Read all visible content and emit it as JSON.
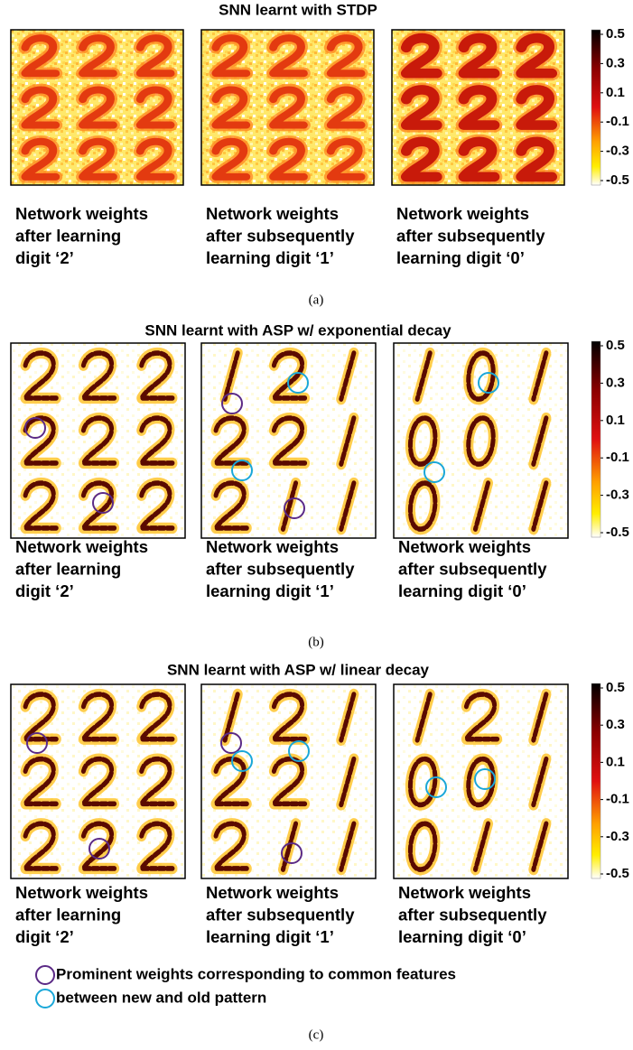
{
  "figures": [
    {
      "title": "SNN learnt with STDP",
      "captions": [
        [
          "Network weights",
          "after learning",
          "digit ‘2’"
        ],
        [
          "Network weights",
          "after subsequently",
          "learning digit ‘1’"
        ],
        [
          "Network weights",
          "after subsequently",
          "learning digit ‘0’"
        ]
      ],
      "colorbar": {
        "lim": [
          -0.5,
          0.5
        ],
        "ticks": [
          0.5,
          0.3,
          0.1,
          -0.1,
          -0.3,
          -0.5
        ]
      },
      "label": "(a)"
    },
    {
      "title": "SNN learnt with ASP w/ exponential decay",
      "captions": [
        [
          "Network weights",
          "after learning",
          "digit ‘2’"
        ],
        [
          "Network weights",
          "after subsequently",
          "learning digit ‘1’"
        ],
        [
          "Network weights",
          "after subsequently",
          "learning digit ‘0’"
        ]
      ],
      "colorbar": {
        "lim": [
          -0.5,
          0.5
        ],
        "ticks": [
          0.5,
          0.3,
          0.1,
          -0.1,
          -0.3,
          -0.5
        ]
      },
      "label": "(b)"
    },
    {
      "title": "SNN learnt with ASP w/ linear decay",
      "captions": [
        [
          "Network weights",
          "after learning",
          "digit ‘2’"
        ],
        [
          "Network weights",
          "after subsequently",
          "learning digit ‘1’"
        ],
        [
          "Network weights",
          "after subsequently",
          "learning digit ‘0’"
        ]
      ],
      "colorbar": {
        "lim": [
          -0.5,
          0.5
        ],
        "ticks": [
          0.5,
          0.3,
          0.1,
          -0.1,
          -0.3,
          -0.5
        ]
      },
      "label": "(c)"
    }
  ],
  "legend": [
    "Prominent weights corresponding to common features",
    "between new and old pattern"
  ]
}
